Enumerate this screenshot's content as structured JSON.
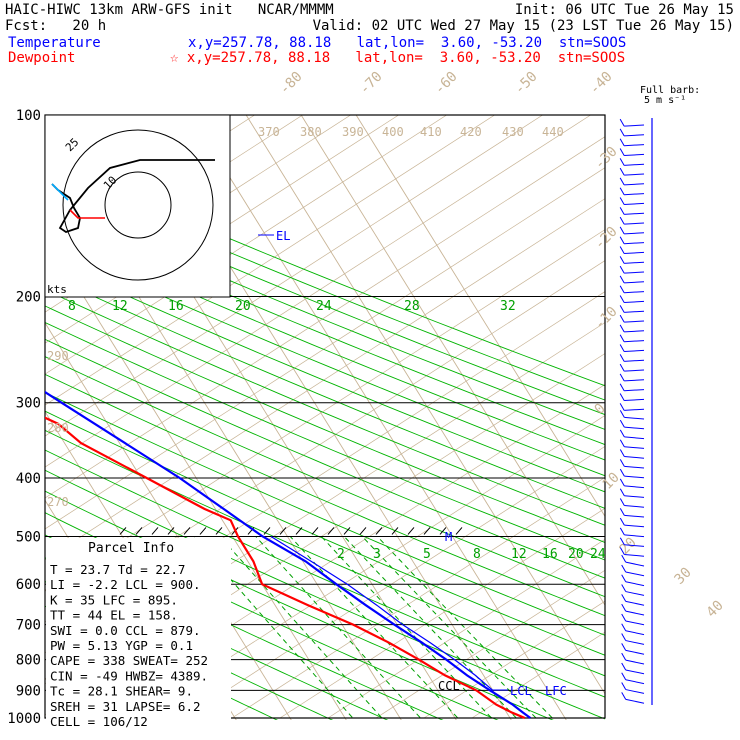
{
  "header": {
    "line1_left": "HAIC-HIWC 13km ARW-GFS init   NCAR/MMMM",
    "line1_right": "Init: 06 UTC Tue 26 May 15",
    "line2_left": "Fcst:   20 h",
    "line2_right": "Valid: 02 UTC Wed 27 May 15 (23 LST Tue 26 May 15)",
    "temp_label": "Temperature",
    "temp_info": "x,y=257.78, 88.18   lat,lon=  3.60, -53.20  stn=SOOS",
    "dew_label": "Dewpoint",
    "dew_info": "☆ x,y=257.78, 88.18   lat,lon=  3.60, -53.20  stn=SOOS",
    "barb_note1": "Full barb:",
    "barb_note2": "5 m s⁻¹"
  },
  "colors": {
    "temperature": "#0000ff",
    "dewpoint": "#ff0000",
    "isotherm": "#c8b496",
    "mixing": "#00a000",
    "adiabat": "#00b400"
  },
  "chart_data": {
    "type": "skew-t",
    "pressure_levels": [
      100,
      200,
      300,
      400,
      500,
      600,
      700,
      800,
      900,
      1000
    ],
    "isotherm_labels": [
      "-80",
      "-70",
      "-60",
      "-50",
      "-40",
      "-30",
      "-20",
      "-10",
      "0",
      "10",
      "20",
      "30",
      "40"
    ],
    "theta_e_labels": [
      "370",
      "380",
      "390",
      "400",
      "410",
      "420",
      "430",
      "440",
      "290",
      "280",
      "270"
    ],
    "adiabat_labels": [
      "8",
      "12",
      "16",
      "20",
      "24",
      "28",
      "32"
    ],
    "mixing_labels": [
      "2",
      "3",
      "5",
      "8",
      "12",
      "16",
      "20",
      "24"
    ],
    "temperature_profile": [
      [
        1000,
        23.7
      ],
      [
        980,
        23
      ],
      [
        950,
        22
      ],
      [
        900,
        19.5
      ],
      [
        850,
        17
      ],
      [
        800,
        15
      ],
      [
        750,
        12.5
      ],
      [
        700,
        9.5
      ],
      [
        650,
        6.5
      ],
      [
        600,
        3.5
      ],
      [
        550,
        0.5
      ],
      [
        500,
        -4.5
      ],
      [
        450,
        -8.5
      ],
      [
        400,
        -13
      ],
      [
        350,
        -19
      ],
      [
        300,
        -26
      ],
      [
        250,
        -34
      ],
      [
        200,
        -45
      ],
      [
        175,
        -53
      ],
      [
        150,
        -62
      ],
      [
        125,
        -70
      ],
      [
        100,
        -74
      ]
    ],
    "dewpoint_profile": [
      [
        1000,
        22.7
      ],
      [
        980,
        21
      ],
      [
        950,
        19
      ],
      [
        900,
        17
      ],
      [
        850,
        13
      ],
      [
        800,
        10
      ],
      [
        750,
        6.5
      ],
      [
        700,
        2
      ],
      [
        650,
        -4
      ],
      [
        600,
        -10
      ],
      [
        550,
        -9
      ],
      [
        500,
        -9
      ],
      [
        470,
        -8.5
      ],
      [
        450,
        -12
      ],
      [
        400,
        -19
      ],
      [
        350,
        -27
      ],
      [
        325,
        -29
      ],
      [
        300,
        -35
      ],
      [
        250,
        -45
      ],
      [
        200,
        -55
      ],
      [
        175,
        -64
      ],
      [
        160,
        -70
      ],
      [
        150,
        -69
      ],
      [
        125,
        -70
      ],
      [
        100,
        -70
      ]
    ],
    "annotations": [
      "EL",
      "LCL",
      "LFC",
      "CCL",
      "M"
    ],
    "hodograph_labels": [
      "25",
      "10",
      "kts"
    ],
    "parcel_info": {
      "title": "Parcel Info",
      "rows": [
        "T  =   23.7  Td =  22.7",
        "LI =   -2.2  LCL =  900.",
        "K  =     35  LFC =  895.",
        "TT =     44  EL  =  158.",
        "SWI =   0.0  CCL =  879.",
        "PW =   5.13  YGP =   0.1",
        "CAPE =  338  SWEAT=  252",
        "CIN =   -49  HWBZ= 4389.",
        "Tc =   28.1  SHEAR=   9.",
        "SREH =   31  LAPSE=   6.2",
        "CELL = 106/12"
      ]
    }
  }
}
